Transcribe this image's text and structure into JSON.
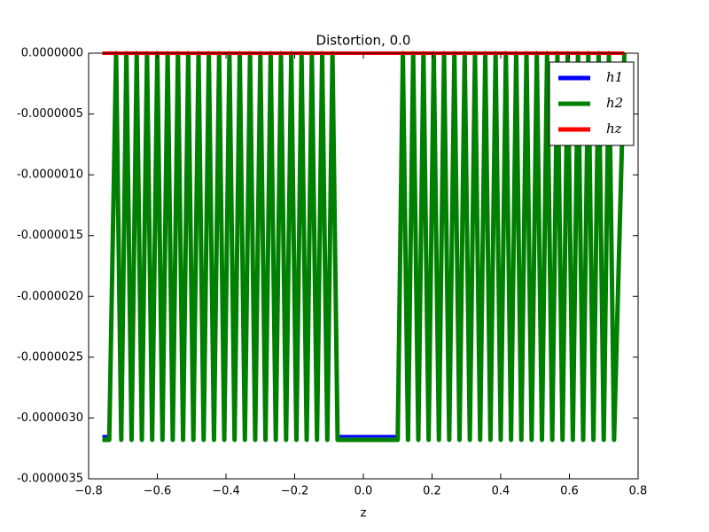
{
  "chart_data": {
    "type": "line",
    "title": "Distortion, 0.0",
    "xlabel": "z",
    "xlim": [
      -0.8,
      0.8
    ],
    "xticks": [
      {
        "value": -0.8,
        "label": "−0.8"
      },
      {
        "value": -0.6,
        "label": "−0.6"
      },
      {
        "value": -0.4,
        "label": "−0.4"
      },
      {
        "value": -0.2,
        "label": "−0.2"
      },
      {
        "value": 0,
        "label": "0.0"
      },
      0.2,
      0.4,
      0.6,
      0.8
    ],
    "ylim": [
      -3.5e-06,
      0
    ],
    "yticks": [
      {
        "value": 0,
        "label": "0.0000000"
      },
      {
        "value": -5e-07,
        "label": "-0.0000005"
      },
      {
        "value": -1e-06,
        "label": "-0.0000010"
      },
      {
        "value": -1.5e-06,
        "label": "-0.0000015"
      },
      {
        "value": -2e-06,
        "label": "-0.0000020"
      },
      {
        "value": -2.5e-06,
        "label": "-0.0000025"
      },
      {
        "value": -3e-06,
        "label": "-0.0000030"
      },
      {
        "value": -3.5e-06,
        "label": "-0.0000035"
      }
    ],
    "legend": "upper right",
    "series": [
      {
        "name": "h1",
        "color": "#0000ff",
        "x": [
          -0.76,
          -0.74,
          -0.72,
          -0.705,
          -0.69,
          -0.675,
          -0.66,
          -0.645,
          -0.63,
          -0.615,
          -0.6,
          -0.585,
          -0.57,
          -0.555,
          -0.54,
          -0.525,
          -0.51,
          -0.495,
          -0.48,
          -0.465,
          -0.45,
          -0.435,
          -0.42,
          -0.405,
          -0.39,
          -0.375,
          -0.36,
          -0.345,
          -0.33,
          -0.315,
          -0.3,
          -0.285,
          -0.27,
          -0.255,
          -0.24,
          -0.225,
          -0.21,
          -0.195,
          -0.18,
          -0.165,
          -0.15,
          -0.135,
          -0.12,
          -0.105,
          -0.09,
          -0.075,
          0.1,
          0.115,
          0.13,
          0.145,
          0.16,
          0.175,
          0.19,
          0.205,
          0.22,
          0.235,
          0.25,
          0.265,
          0.28,
          0.295,
          0.31,
          0.325,
          0.34,
          0.355,
          0.37,
          0.385,
          0.4,
          0.415,
          0.43,
          0.445,
          0.46,
          0.475,
          0.49,
          0.505,
          0.52,
          0.535,
          0.55,
          0.565,
          0.58,
          0.595,
          0.61,
          0.625,
          0.64,
          0.655,
          0.67,
          0.685,
          0.7,
          0.715,
          0.73,
          0.76
        ],
        "values": [
          -3.15e-06,
          -3.15e-06,
          0,
          -3.15e-06,
          0,
          -3.15e-06,
          0,
          -3.15e-06,
          0,
          -3.15e-06,
          0,
          -3.15e-06,
          0,
          -3.15e-06,
          0,
          -3.15e-06,
          0,
          -3.15e-06,
          0,
          -3.15e-06,
          0,
          -3.15e-06,
          0,
          -3.15e-06,
          0,
          -3.15e-06,
          0,
          -3.15e-06,
          0,
          -3.15e-06,
          0,
          -3.15e-06,
          0,
          -3.15e-06,
          0,
          -3.15e-06,
          0,
          -3.15e-06,
          0,
          -3.15e-06,
          0,
          -3.15e-06,
          0,
          -3.15e-06,
          0,
          -3.15e-06,
          -3.15e-06,
          0,
          -3.15e-06,
          0,
          -3.15e-06,
          0,
          -3.15e-06,
          0,
          -3.15e-06,
          0,
          -3.15e-06,
          0,
          -3.15e-06,
          0,
          -3.15e-06,
          0,
          -3.15e-06,
          0,
          -3.15e-06,
          0,
          -3.15e-06,
          0,
          -3.15e-06,
          0,
          -3.15e-06,
          0,
          -3.15e-06,
          0,
          -3.15e-06,
          0,
          -3.15e-06,
          0,
          -3.15e-06,
          0,
          -3.15e-06,
          0,
          -3.15e-06,
          0,
          -3.15e-06,
          0,
          -3.15e-06,
          0,
          -3.15e-06,
          0
        ]
      },
      {
        "name": "h2",
        "color": "#008000",
        "x": [
          -0.76,
          -0.74,
          -0.72,
          -0.705,
          -0.69,
          -0.675,
          -0.66,
          -0.645,
          -0.63,
          -0.615,
          -0.6,
          -0.585,
          -0.57,
          -0.555,
          -0.54,
          -0.525,
          -0.51,
          -0.495,
          -0.48,
          -0.465,
          -0.45,
          -0.435,
          -0.42,
          -0.405,
          -0.39,
          -0.375,
          -0.36,
          -0.345,
          -0.33,
          -0.315,
          -0.3,
          -0.285,
          -0.27,
          -0.255,
          -0.24,
          -0.225,
          -0.21,
          -0.195,
          -0.18,
          -0.165,
          -0.15,
          -0.135,
          -0.12,
          -0.105,
          -0.09,
          -0.075,
          0.1,
          0.115,
          0.13,
          0.145,
          0.16,
          0.175,
          0.19,
          0.205,
          0.22,
          0.235,
          0.25,
          0.265,
          0.28,
          0.295,
          0.31,
          0.325,
          0.34,
          0.355,
          0.37,
          0.385,
          0.4,
          0.415,
          0.43,
          0.445,
          0.46,
          0.475,
          0.49,
          0.505,
          0.52,
          0.535,
          0.55,
          0.565,
          0.58,
          0.595,
          0.61,
          0.625,
          0.64,
          0.655,
          0.67,
          0.685,
          0.7,
          0.715,
          0.73,
          0.76
        ],
        "values": [
          -3.18e-06,
          -3.18e-06,
          0,
          -3.18e-06,
          0,
          -3.18e-06,
          0,
          -3.18e-06,
          0,
          -3.18e-06,
          0,
          -3.18e-06,
          0,
          -3.18e-06,
          0,
          -3.18e-06,
          0,
          -3.18e-06,
          0,
          -3.18e-06,
          0,
          -3.18e-06,
          0,
          -3.18e-06,
          0,
          -3.18e-06,
          0,
          -3.18e-06,
          0,
          -3.18e-06,
          0,
          -3.18e-06,
          0,
          -3.18e-06,
          0,
          -3.18e-06,
          0,
          -3.18e-06,
          0,
          -3.18e-06,
          0,
          -3.18e-06,
          0,
          -3.18e-06,
          0,
          -3.18e-06,
          -3.18e-06,
          0,
          -3.18e-06,
          0,
          -3.18e-06,
          0,
          -3.18e-06,
          0,
          -3.18e-06,
          0,
          -3.18e-06,
          0,
          -3.18e-06,
          0,
          -3.18e-06,
          0,
          -3.18e-06,
          0,
          -3.18e-06,
          0,
          -3.18e-06,
          0,
          -3.18e-06,
          0,
          -3.18e-06,
          0,
          -3.18e-06,
          0,
          -3.18e-06,
          0,
          -3.18e-06,
          0,
          -3.18e-06,
          0,
          -3.18e-06,
          0,
          -3.18e-06,
          0,
          -3.18e-06,
          0,
          -3.18e-06,
          0,
          -3.18e-06,
          0
        ]
      },
      {
        "name": "hz",
        "color": "#ff0000",
        "x": [
          -0.76,
          0.76
        ],
        "values": [
          0,
          0
        ]
      }
    ]
  }
}
